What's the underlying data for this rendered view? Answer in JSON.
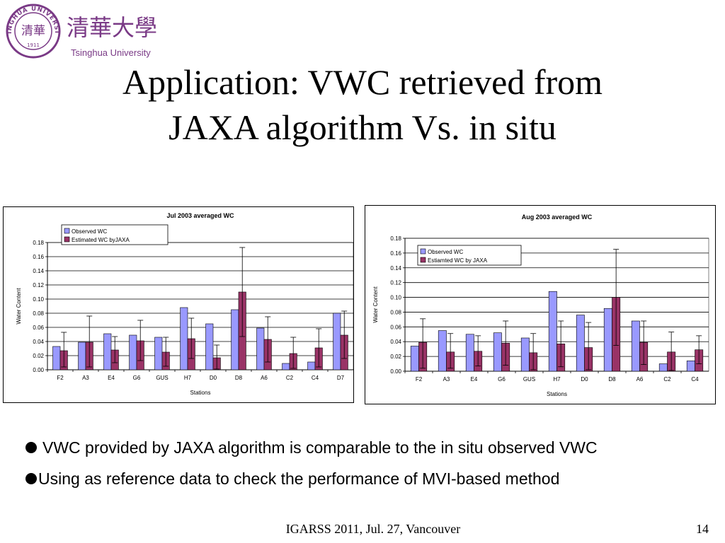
{
  "logo": {
    "seal_text": "TSINGHUA UNIVERSITY",
    "seal_year": "1911",
    "seal_monogram": "清華",
    "chinese_name": "清華大學",
    "english_name": "Tsinghua University",
    "color": "#7a3a86"
  },
  "slide": {
    "title_line1": "Application: VWC retrieved from",
    "title_line2": "JAXA algorithm Vs. in situ"
  },
  "bullets": [
    "VWC provided by JAXA algorithm is comparable to the in situ observed VWC",
    "Using as reference data to check the performance of MVI-based method"
  ],
  "footer": {
    "text": "IGARSS 2011, Jul. 27, Vancouver",
    "page": "14"
  },
  "colors": {
    "observed": "#9999ff",
    "estimated": "#993366"
  },
  "chart_data": [
    {
      "type": "bar",
      "title": "Jul 2003 averaged WC",
      "xlabel": "Stations",
      "ylabel": "Water Content",
      "ylim": [
        0,
        0.18
      ],
      "yticks": [
        "0.00",
        "0.02",
        "0.04",
        "0.06",
        "0.08",
        "0.10",
        "0.12",
        "0.14",
        "0.16",
        "0.18"
      ],
      "grid": true,
      "legend_position": "top-left",
      "categories": [
        "F2",
        "A3",
        "E4",
        "G6",
        "GUS",
        "H7",
        "D0",
        "D8",
        "A6",
        "C2",
        "C4",
        "D7"
      ],
      "series": [
        {
          "name": "Observed WC",
          "values": [
            0.033,
            0.039,
            0.051,
            0.049,
            0.046,
            0.088,
            0.065,
            0.085,
            0.059,
            0.009,
            0.011,
            0.08
          ]
        },
        {
          "name": "Estimated WC byJAXA",
          "values": [
            0.027,
            0.039,
            0.028,
            0.041,
            0.025,
            0.044,
            0.017,
            0.11,
            0.043,
            0.023,
            0.031,
            0.049
          ],
          "error_low": [
            0.004,
            0.004,
            0.01,
            0.013,
            0.005,
            0.016,
            0.001,
            0.047,
            0.011,
            0.002,
            0.004,
            0.016
          ],
          "error_high": [
            0.053,
            0.076,
            0.047,
            0.07,
            0.046,
            0.073,
            0.035,
            0.173,
            0.075,
            0.046,
            0.058,
            0.083
          ]
        }
      ]
    },
    {
      "type": "bar",
      "title": "Aug 2003 averaged WC",
      "xlabel": "Stations",
      "ylabel": "Water Content",
      "ylim": [
        0,
        0.18
      ],
      "yticks": [
        "0.00",
        "0.02",
        "0.04",
        "0.06",
        "0.08",
        "0.10",
        "0.12",
        "0.14",
        "0.16",
        "0.18"
      ],
      "grid": true,
      "legend_position": "top-left",
      "categories": [
        "F2",
        "A3",
        "E4",
        "G6",
        "GUS",
        "H7",
        "D0",
        "D8",
        "A6",
        "C2",
        "C4"
      ],
      "series": [
        {
          "name": "Observed WC",
          "values": [
            0.034,
            0.055,
            0.05,
            0.052,
            0.045,
            0.108,
            0.076,
            0.085,
            0.068,
            0.01,
            0.014
          ]
        },
        {
          "name": "Estiamted WC by JAXA",
          "values": [
            0.039,
            0.026,
            0.027,
            0.038,
            0.025,
            0.037,
            0.032,
            0.1,
            0.039,
            0.026,
            0.029
          ],
          "error_low": [
            0.004,
            0.004,
            0.007,
            0.008,
            0.002,
            0.006,
            0.002,
            0.035,
            0.009,
            0.001,
            0.01
          ],
          "error_high": [
            0.071,
            0.051,
            0.048,
            0.068,
            0.051,
            0.068,
            0.066,
            0.165,
            0.068,
            0.053,
            0.048
          ]
        }
      ]
    }
  ]
}
